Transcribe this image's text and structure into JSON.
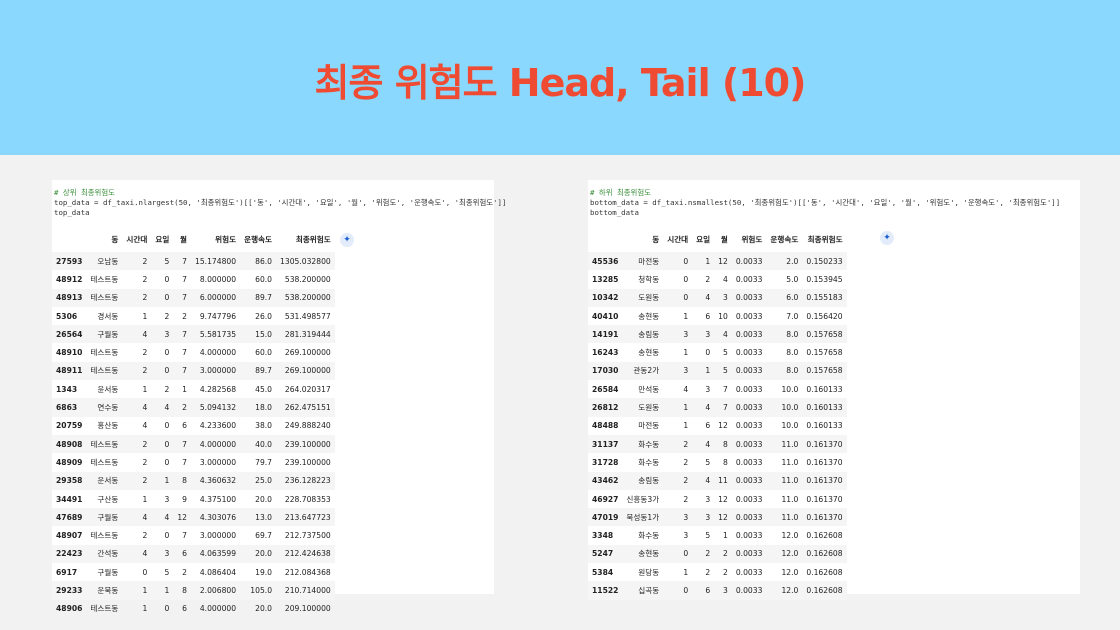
{
  "slide": {
    "title": "최종 위험도 Head, Tail (10)"
  },
  "left": {
    "comment": "# 상위 최종위험도",
    "code_line": "top_data = df_taxi.nlargest(50, '최종위험도')[['동', '시간대', '요일', '월', '위험도', '운행속도', '최종위험도']]",
    "code_var": "top_data",
    "columns": [
      "",
      "동",
      "시간대",
      "요일",
      "월",
      "위험도",
      "운행속도",
      "최종위험도"
    ],
    "rows": [
      [
        "27593",
        "오남동",
        "2",
        "5",
        "7",
        "15.174800",
        "86.0",
        "1305.032800"
      ],
      [
        "48912",
        "테스트동",
        "2",
        "0",
        "7",
        "8.000000",
        "60.0",
        "538.200000"
      ],
      [
        "48913",
        "테스트동",
        "2",
        "0",
        "7",
        "6.000000",
        "89.7",
        "538.200000"
      ],
      [
        "5306",
        "경서동",
        "1",
        "2",
        "2",
        "9.747796",
        "26.0",
        "531.498577"
      ],
      [
        "26564",
        "구월동",
        "4",
        "3",
        "7",
        "5.581735",
        "15.0",
        "281.319444"
      ],
      [
        "48910",
        "테스트동",
        "2",
        "0",
        "7",
        "4.000000",
        "60.0",
        "269.100000"
      ],
      [
        "48911",
        "테스트동",
        "2",
        "0",
        "7",
        "3.000000",
        "89.7",
        "269.100000"
      ],
      [
        "1343",
        "윤서동",
        "1",
        "2",
        "1",
        "4.282568",
        "45.0",
        "264.020317"
      ],
      [
        "6863",
        "연수동",
        "4",
        "4",
        "2",
        "5.094132",
        "18.0",
        "262.475151"
      ],
      [
        "20759",
        "홍산동",
        "4",
        "0",
        "6",
        "4.233600",
        "38.0",
        "249.888240"
      ],
      [
        "48908",
        "테스트동",
        "2",
        "0",
        "7",
        "4.000000",
        "40.0",
        "239.100000"
      ],
      [
        "48909",
        "테스트동",
        "2",
        "0",
        "7",
        "3.000000",
        "79.7",
        "239.100000"
      ],
      [
        "29358",
        "운서동",
        "2",
        "1",
        "8",
        "4.360632",
        "25.0",
        "236.128223"
      ],
      [
        "34491",
        "구산동",
        "1",
        "3",
        "9",
        "4.375100",
        "20.0",
        "228.708353"
      ],
      [
        "47689",
        "구월동",
        "4",
        "4",
        "12",
        "4.303076",
        "13.0",
        "213.647723"
      ],
      [
        "48907",
        "테스트동",
        "2",
        "0",
        "7",
        "3.000000",
        "69.7",
        "212.737500"
      ],
      [
        "22423",
        "간석동",
        "4",
        "3",
        "6",
        "4.063599",
        "20.0",
        "212.424638"
      ],
      [
        "6917",
        "구월동",
        "0",
        "5",
        "2",
        "4.086404",
        "19.0",
        "212.084368"
      ],
      [
        "29233",
        "운북동",
        "1",
        "1",
        "8",
        "2.006800",
        "105.0",
        "210.714000"
      ],
      [
        "48906",
        "테스트동",
        "1",
        "0",
        "6",
        "4.000000",
        "20.0",
        "209.100000"
      ]
    ]
  },
  "right": {
    "comment": "# 하위 최종위험도",
    "code_line": "bottom_data = df_taxi.nsmallest(50, '최종위험도')[['동', '시간대', '요일', '월', '위험도', '운행속도', '최종위험도']]",
    "code_var": "bottom_data",
    "columns": [
      "",
      "동",
      "시간대",
      "요일",
      "월",
      "위험도",
      "운행속도",
      "최종위험도"
    ],
    "rows": [
      [
        "45536",
        "마전동",
        "0",
        "1",
        "12",
        "0.0033",
        "2.0",
        "0.150233"
      ],
      [
        "13285",
        "청학동",
        "0",
        "2",
        "4",
        "0.0033",
        "5.0",
        "0.153945"
      ],
      [
        "10342",
        "도원동",
        "0",
        "4",
        "3",
        "0.0033",
        "6.0",
        "0.155183"
      ],
      [
        "40410",
        "송현동",
        "1",
        "6",
        "10",
        "0.0033",
        "7.0",
        "0.156420"
      ],
      [
        "14191",
        "송림동",
        "3",
        "3",
        "4",
        "0.0033",
        "8.0",
        "0.157658"
      ],
      [
        "16243",
        "송현동",
        "1",
        "0",
        "5",
        "0.0033",
        "8.0",
        "0.157658"
      ],
      [
        "17030",
        "관동2가",
        "3",
        "1",
        "5",
        "0.0033",
        "8.0",
        "0.157658"
      ],
      [
        "26584",
        "만석동",
        "4",
        "3",
        "7",
        "0.0033",
        "10.0",
        "0.160133"
      ],
      [
        "26812",
        "도원동",
        "1",
        "4",
        "7",
        "0.0033",
        "10.0",
        "0.160133"
      ],
      [
        "48488",
        "마전동",
        "1",
        "6",
        "12",
        "0.0033",
        "10.0",
        "0.160133"
      ],
      [
        "31137",
        "화수동",
        "2",
        "4",
        "8",
        "0.0033",
        "11.0",
        "0.161370"
      ],
      [
        "31728",
        "화수동",
        "2",
        "5",
        "8",
        "0.0033",
        "11.0",
        "0.161370"
      ],
      [
        "43462",
        "송림동",
        "2",
        "4",
        "11",
        "0.0033",
        "11.0",
        "0.161370"
      ],
      [
        "46927",
        "신흥동3가",
        "2",
        "3",
        "12",
        "0.0033",
        "11.0",
        "0.161370"
      ],
      [
        "47019",
        "북성동1가",
        "3",
        "3",
        "12",
        "0.0033",
        "11.0",
        "0.161370"
      ],
      [
        "3348",
        "화수동",
        "3",
        "5",
        "1",
        "0.0033",
        "12.0",
        "0.162608"
      ],
      [
        "5247",
        "송현동",
        "0",
        "2",
        "2",
        "0.0033",
        "12.0",
        "0.162608"
      ],
      [
        "5384",
        "원당동",
        "1",
        "2",
        "2",
        "0.0033",
        "12.0",
        "0.162608"
      ],
      [
        "11522",
        "십곡동",
        "0",
        "6",
        "3",
        "0.0033",
        "12.0",
        "0.162608"
      ]
    ]
  }
}
